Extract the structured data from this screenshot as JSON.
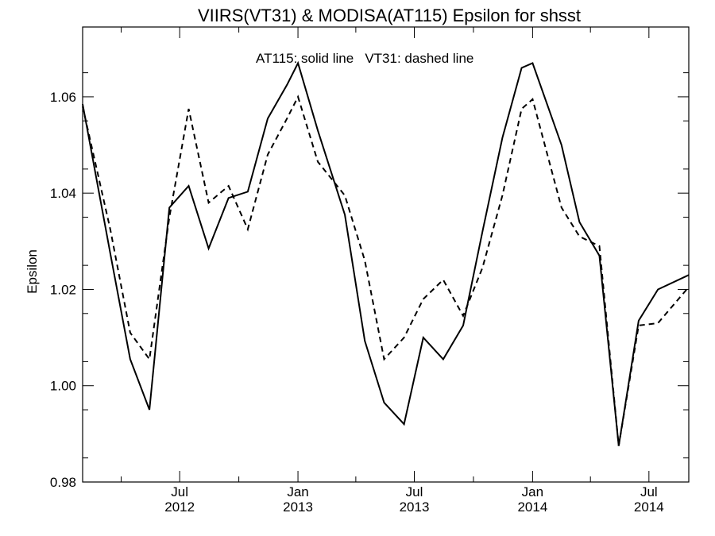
{
  "chart_data": {
    "type": "line",
    "title": "VIIRS(VT31) & MODISA(AT115)  Epsilon for shsst",
    "ylabel": "Epsilon",
    "xlabel": "",
    "ylim": [
      0.98,
      1.0745
    ],
    "xlim": [
      "2012-02-01",
      "2014-09-01"
    ],
    "grid": false,
    "annotation": "AT115: solid line   VT31: dashed line",
    "x_major_ticks": [
      {
        "date": "2012-07-01",
        "month": "Jul",
        "year": "2012"
      },
      {
        "date": "2013-01-01",
        "month": "Jan",
        "year": "2013"
      },
      {
        "date": "2013-07-01",
        "month": "Jul",
        "year": "2013"
      },
      {
        "date": "2014-01-01",
        "month": "Jan",
        "year": "2014"
      },
      {
        "date": "2014-07-01",
        "month": "Jul",
        "year": "2014"
      }
    ],
    "y_ticks": [
      "0.98",
      "1.00",
      "1.02",
      "1.04",
      "1.06"
    ],
    "series": [
      {
        "name": "AT115",
        "style": "solid",
        "x": [
          "2012-02-01",
          "2012-03-15",
          "2012-04-15",
          "2012-05-15",
          "2012-06-15",
          "2012-07-15",
          "2012-08-15",
          "2012-09-15",
          "2012-10-15",
          "2012-11-15",
          "2012-12-15",
          "2013-01-01",
          "2013-02-01",
          "2013-03-15",
          "2013-04-15",
          "2013-05-15",
          "2013-06-15",
          "2013-07-15",
          "2013-08-15",
          "2013-09-15",
          "2013-10-15",
          "2013-11-15",
          "2013-12-15",
          "2014-01-01",
          "2014-02-15",
          "2014-03-15",
          "2014-04-15",
          "2014-05-15",
          "2014-06-15",
          "2014-07-15",
          "2014-09-01"
        ],
        "values": [
          1.0585,
          1.0275,
          1.0055,
          0.995,
          1.037,
          1.0415,
          1.0285,
          1.039,
          1.0403,
          1.0555,
          1.0625,
          1.067,
          1.053,
          1.0355,
          1.0093,
          0.9965,
          0.992,
          1.01,
          1.0055,
          1.0125,
          1.032,
          1.0515,
          1.066,
          1.067,
          1.05,
          1.034,
          1.027,
          0.9875,
          1.0135,
          1.02,
          1.023
        ]
      },
      {
        "name": "VT31",
        "style": "dashed",
        "x": [
          "2012-02-01",
          "2012-03-15",
          "2012-04-15",
          "2012-05-15",
          "2012-06-15",
          "2012-07-15",
          "2012-08-15",
          "2012-09-15",
          "2012-10-15",
          "2012-11-15",
          "2012-12-15",
          "2013-01-01",
          "2013-02-01",
          "2013-03-15",
          "2013-04-15",
          "2013-05-15",
          "2013-06-15",
          "2013-07-15",
          "2013-08-15",
          "2013-09-15",
          "2013-10-15",
          "2013-11-15",
          "2013-12-15",
          "2014-01-01",
          "2014-02-15",
          "2014-03-15",
          "2014-04-15",
          "2014-05-15",
          "2014-06-15",
          "2014-07-15",
          "2014-09-01"
        ],
        "values": [
          1.058,
          1.0325,
          1.011,
          1.0055,
          1.035,
          1.0575,
          1.038,
          1.0415,
          1.0325,
          1.048,
          1.0555,
          1.06,
          1.0465,
          1.0395,
          1.026,
          1.0055,
          1.01,
          1.018,
          1.022,
          1.0145,
          1.0245,
          1.0395,
          1.0575,
          1.0595,
          1.037,
          1.031,
          1.029,
          0.9875,
          1.0125,
          1.013,
          1.0205
        ]
      }
    ]
  }
}
